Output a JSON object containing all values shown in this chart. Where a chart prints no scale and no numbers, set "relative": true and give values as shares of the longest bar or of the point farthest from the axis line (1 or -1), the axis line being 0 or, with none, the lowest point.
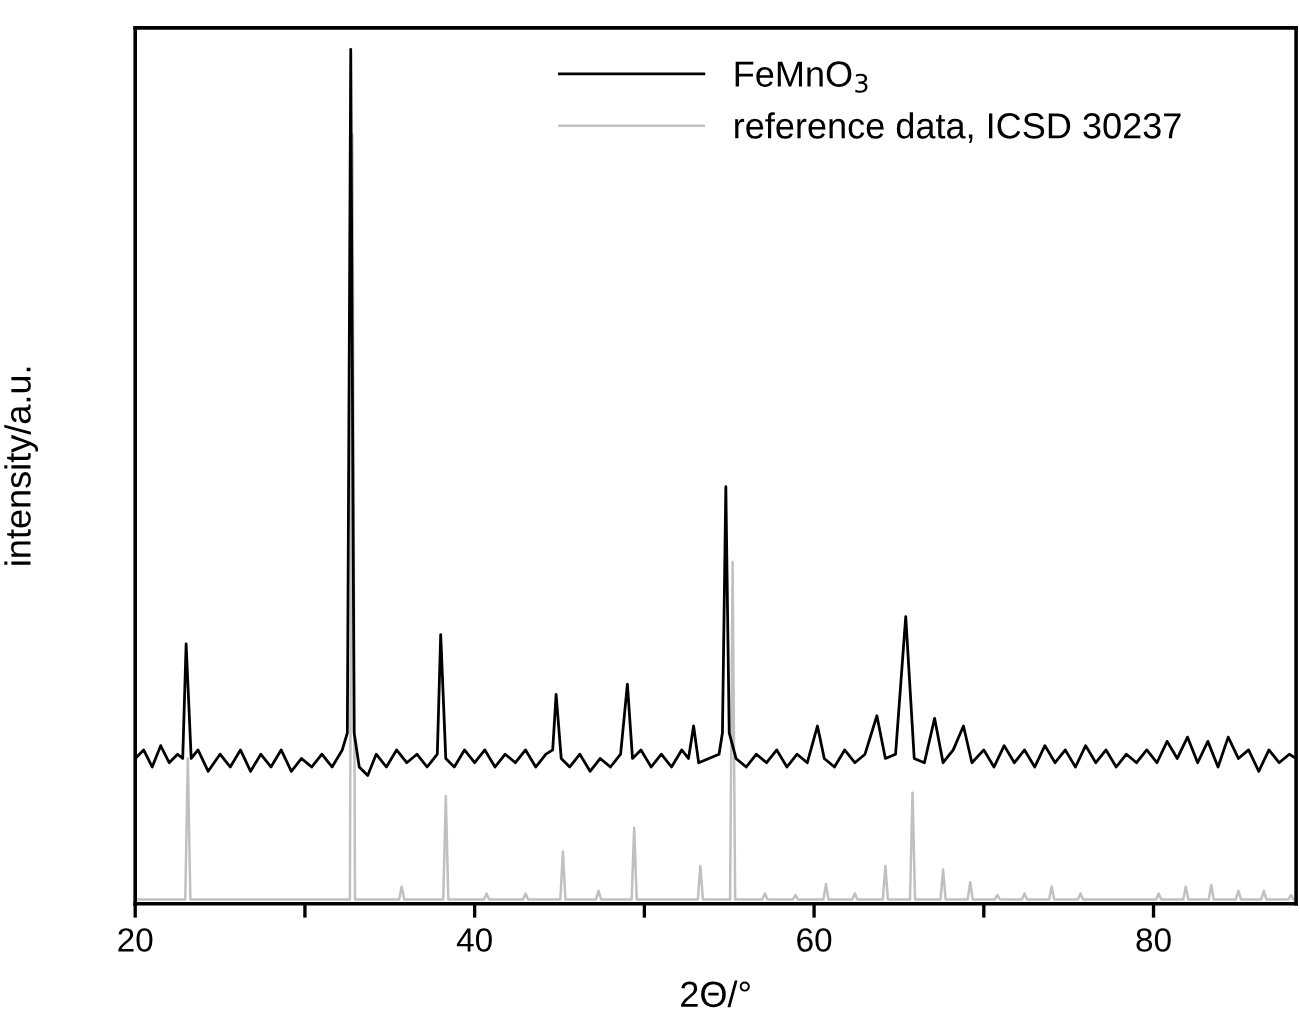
{
  "chart_data": {
    "type": "line",
    "relative": true,
    "xlabel": "2Θ/°",
    "ylabel": "intensity/a.u.",
    "xlim": [
      20,
      88.4
    ],
    "xticks": [
      20,
      {
        "value": 30,
        "label": null
      },
      40,
      {
        "value": 50,
        "label": null
      },
      60,
      {
        "value": 70,
        "label": null
      },
      80
    ],
    "legend": "top right",
    "grid": false,
    "series": [
      {
        "name": "FeMnO$_{3}$",
        "color": "#000000",
        "x": [
          20.0,
          20.5,
          21.0,
          21.5,
          22.0,
          22.5,
          22.8,
          23.0,
          23.3,
          23.7,
          24.3,
          25.0,
          25.6,
          26.2,
          26.8,
          27.4,
          28.0,
          28.6,
          29.2,
          29.8,
          30.4,
          31.0,
          31.6,
          32.2,
          32.5,
          32.7,
          32.9,
          33.2,
          33.7,
          34.2,
          34.8,
          35.4,
          36.0,
          36.6,
          37.2,
          37.8,
          38.0,
          38.3,
          38.8,
          39.4,
          40.0,
          40.6,
          41.2,
          41.8,
          42.4,
          43.0,
          43.6,
          44.2,
          44.6,
          44.8,
          45.1,
          45.6,
          46.2,
          46.8,
          47.4,
          48.0,
          48.6,
          49.0,
          49.3,
          49.8,
          50.4,
          51.0,
          51.6,
          52.2,
          52.6,
          52.9,
          53.2,
          53.8,
          54.4,
          54.6,
          54.8,
          55.0,
          55.4,
          56.0,
          56.6,
          57.2,
          57.8,
          58.4,
          59.0,
          59.6,
          60.2,
          60.6,
          61.2,
          61.8,
          62.4,
          63.0,
          63.7,
          64.2,
          64.8,
          65.4,
          65.9,
          66.5,
          67.1,
          67.6,
          68.2,
          68.8,
          69.3,
          70.0,
          70.6,
          71.2,
          71.8,
          72.4,
          73.0,
          73.6,
          74.2,
          74.8,
          75.4,
          76.0,
          76.6,
          77.2,
          77.8,
          78.4,
          79.0,
          79.6,
          80.2,
          80.8,
          81.4,
          82.0,
          82.6,
          83.2,
          83.8,
          84.4,
          85.0,
          85.6,
          86.2,
          86.8,
          87.4,
          88.0,
          88.4
        ],
        "values": [
          0.17,
          0.18,
          0.16,
          0.185,
          0.165,
          0.175,
          0.17,
          0.304,
          0.17,
          0.18,
          0.155,
          0.175,
          0.16,
          0.18,
          0.155,
          0.175,
          0.16,
          0.18,
          0.155,
          0.17,
          0.16,
          0.175,
          0.16,
          0.18,
          0.2,
          1.0,
          0.2,
          0.16,
          0.15,
          0.175,
          0.16,
          0.18,
          0.165,
          0.175,
          0.16,
          0.175,
          0.315,
          0.17,
          0.16,
          0.18,
          0.165,
          0.18,
          0.16,
          0.175,
          0.165,
          0.18,
          0.16,
          0.175,
          0.18,
          0.245,
          0.17,
          0.16,
          0.175,
          0.155,
          0.17,
          0.16,
          0.175,
          0.257,
          0.17,
          0.18,
          0.16,
          0.175,
          0.16,
          0.18,
          0.17,
          0.208,
          0.165,
          0.17,
          0.175,
          0.2,
          0.488,
          0.2,
          0.17,
          0.16,
          0.175,
          0.165,
          0.18,
          0.16,
          0.175,
          0.165,
          0.208,
          0.17,
          0.16,
          0.18,
          0.165,
          0.175,
          0.22,
          0.17,
          0.175,
          0.336,
          0.17,
          0.165,
          0.217,
          0.165,
          0.18,
          0.208,
          0.165,
          0.18,
          0.16,
          0.185,
          0.165,
          0.18,
          0.16,
          0.185,
          0.165,
          0.18,
          0.16,
          0.185,
          0.165,
          0.18,
          0.16,
          0.175,
          0.165,
          0.18,
          0.165,
          0.19,
          0.17,
          0.195,
          0.165,
          0.19,
          0.16,
          0.195,
          0.17,
          0.18,
          0.155,
          0.18,
          0.165,
          0.175,
          0.17
        ]
      },
      {
        "name": "reference data, ICSD 30237",
        "color": "#c0c0c0",
        "x": [
          20.0,
          22.95,
          23.1,
          23.25,
          32.65,
          32.8,
          32.95,
          35.55,
          35.7,
          35.85,
          38.15,
          38.3,
          38.45,
          40.55,
          40.7,
          40.85,
          42.85,
          43.0,
          43.15,
          45.05,
          45.2,
          45.35,
          47.15,
          47.3,
          47.45,
          49.25,
          49.4,
          49.55,
          53.15,
          53.3,
          53.45,
          55.05,
          55.2,
          55.35,
          56.95,
          57.1,
          57.25,
          58.75,
          58.9,
          59.05,
          60.55,
          60.7,
          60.85,
          62.25,
          62.4,
          62.55,
          64.05,
          64.2,
          64.35,
          65.65,
          65.8,
          65.95,
          67.45,
          67.6,
          67.75,
          69.05,
          69.2,
          69.35,
          70.65,
          70.8,
          70.95,
          72.25,
          72.4,
          72.55,
          73.85,
          74.0,
          74.15,
          75.55,
          75.7,
          75.85,
          80.15,
          80.3,
          80.45,
          81.75,
          81.9,
          82.05,
          83.25,
          83.4,
          83.55,
          84.85,
          85.0,
          85.15,
          86.35,
          86.5,
          86.65,
          87.95,
          88.1,
          88.25,
          88.4
        ],
        "values": [
          0.005,
          0.005,
          0.17,
          0.005,
          0.005,
          0.9,
          0.005,
          0.005,
          0.02,
          0.005,
          0.005,
          0.126,
          0.005,
          0.005,
          0.012,
          0.005,
          0.005,
          0.012,
          0.005,
          0.005,
          0.061,
          0.005,
          0.005,
          0.015,
          0.005,
          0.005,
          0.089,
          0.005,
          0.005,
          0.044,
          0.005,
          0.005,
          0.4,
          0.005,
          0.005,
          0.012,
          0.005,
          0.005,
          0.01,
          0.005,
          0.005,
          0.023,
          0.005,
          0.005,
          0.012,
          0.005,
          0.005,
          0.044,
          0.005,
          0.005,
          0.13,
          0.005,
          0.005,
          0.04,
          0.005,
          0.005,
          0.025,
          0.005,
          0.005,
          0.01,
          0.005,
          0.005,
          0.012,
          0.005,
          0.005,
          0.02,
          0.005,
          0.005,
          0.012,
          0.005,
          0.005,
          0.012,
          0.005,
          0.005,
          0.02,
          0.005,
          0.005,
          0.022,
          0.005,
          0.005,
          0.015,
          0.005,
          0.005,
          0.015,
          0.005,
          0.005,
          0.01,
          0.005,
          0.005
        ]
      }
    ]
  }
}
